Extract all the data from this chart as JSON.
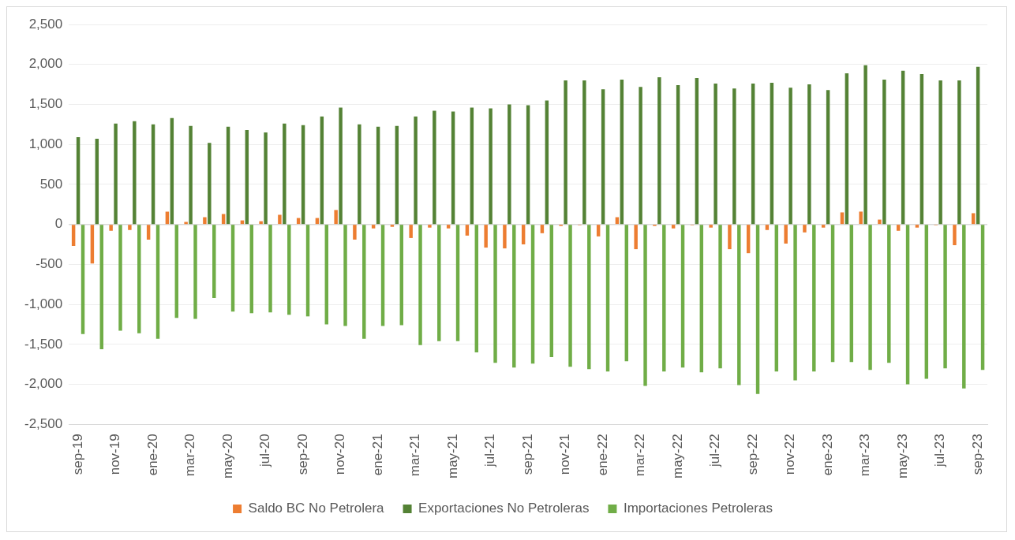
{
  "chart_data": {
    "type": "bar",
    "categories": [
      "sep-19",
      null,
      "nov-19",
      null,
      "ene-20",
      null,
      "mar-20",
      null,
      "may-20",
      null,
      "jul-20",
      null,
      "sep-20",
      null,
      "nov-20",
      null,
      "ene-21",
      null,
      "mar-21",
      null,
      "may-21",
      null,
      "jul-21",
      null,
      "sep-21",
      null,
      "nov-21",
      null,
      "ene-22",
      null,
      "mar-22",
      null,
      "may-22",
      null,
      "jul-22",
      null,
      "sep-22",
      null,
      "nov-22",
      null,
      "ene-23",
      null,
      "mar-23",
      null,
      "may-23",
      null,
      "jul-23",
      null,
      "sep-23"
    ],
    "series": [
      {
        "name": "Saldo BC No Petrolera",
        "color": "#ed7d31",
        "values": [
          -270,
          -490,
          -80,
          -70,
          -190,
          160,
          30,
          90,
          130,
          50,
          40,
          120,
          80,
          80,
          180,
          -190,
          -50,
          -30,
          -170,
          -40,
          -50,
          -140,
          -290,
          -300,
          -250,
          -110,
          -20,
          -10,
          -150,
          90,
          -310,
          -20,
          -50,
          -10,
          -40,
          -310,
          -360,
          -70,
          -240,
          -100,
          -40,
          150,
          160,
          60,
          -80,
          -40,
          -10,
          -260,
          140
        ]
      },
      {
        "name": "Exportaciones No Petroleras",
        "color": "#548235",
        "values": [
          1090,
          1070,
          1260,
          1290,
          1250,
          1330,
          1230,
          1020,
          1220,
          1180,
          1150,
          1260,
          1240,
          1350,
          1460,
          1250,
          1220,
          1230,
          1350,
          1420,
          1410,
          1460,
          1450,
          1500,
          1490,
          1550,
          1800,
          1800,
          1690,
          1810,
          1720,
          1840,
          1740,
          1830,
          1760,
          1700,
          1760,
          1770,
          1710,
          1750,
          1680,
          1890,
          1990,
          1810,
          1920,
          1880,
          1800,
          1800,
          1970
        ]
      },
      {
        "name": "Importaciones Petroleras",
        "color": "#70ad47",
        "values": [
          -1370,
          -1560,
          -1330,
          -1360,
          -1430,
          -1170,
          -1180,
          -920,
          -1090,
          -1110,
          -1100,
          -1130,
          -1150,
          -1250,
          -1270,
          -1430,
          -1270,
          -1260,
          -1510,
          -1460,
          -1460,
          -1600,
          -1730,
          -1790,
          -1740,
          -1660,
          -1780,
          -1810,
          -1840,
          -1710,
          -2020,
          -1840,
          -1790,
          -1850,
          -1800,
          -2010,
          -2120,
          -1840,
          -1950,
          -1840,
          -1720,
          -1720,
          -1820,
          -1730,
          -2000,
          -1930,
          -1800,
          -2050,
          -1820
        ]
      }
    ],
    "ylim": [
      -2500,
      2500
    ],
    "yticks": [
      {
        "value": -2500,
        "label": "-2,500"
      },
      {
        "value": -2000,
        "label": "-2,000"
      },
      {
        "value": -1500,
        "label": "-1,500"
      },
      {
        "value": -1000,
        "label": "-1,000"
      },
      -500,
      0,
      500,
      {
        "value": 1000,
        "label": "1,000"
      },
      {
        "value": 1500,
        "label": "1,500"
      },
      {
        "value": 2000,
        "label": "2,000"
      },
      {
        "value": 2500,
        "label": "2,500"
      }
    ],
    "grid": "y",
    "legend": "bottom"
  }
}
